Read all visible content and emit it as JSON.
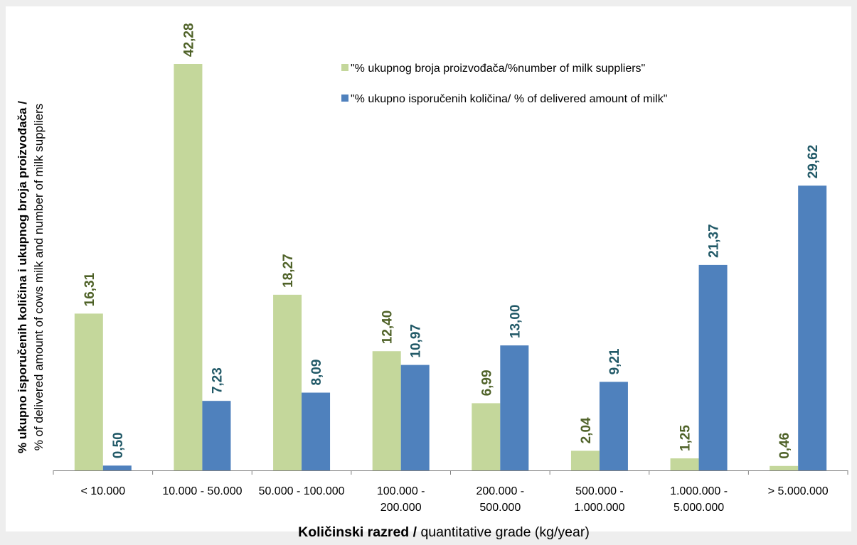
{
  "chart_data": {
    "type": "bar",
    "title": "",
    "categories": [
      [
        "< 10.000"
      ],
      [
        "10.000 - 50.000"
      ],
      [
        "50.000 - 100.000"
      ],
      [
        "100.000 -",
        "200.000"
      ],
      [
        "200.000 -",
        "500.000"
      ],
      [
        "500.000 -",
        "1.000.000"
      ],
      [
        "1.000.000 -",
        "5.000.000"
      ],
      [
        "> 5.000.000"
      ]
    ],
    "series": [
      {
        "name": "\"% ukupnog broja proizvođača/%number of milk suppliers\"",
        "color": "#c4d79b",
        "label_color": "#4f6228",
        "values": [
          16.31,
          42.28,
          18.27,
          12.4,
          6.99,
          2.04,
          1.25,
          0.46
        ],
        "labels": [
          "16,31",
          "42,28",
          "18,27",
          "12,40",
          "6,99",
          "2,04",
          "1,25",
          "0,46"
        ]
      },
      {
        "name": "\"% ukupno isporučenih količina/ % of delivered amount of milk\"",
        "color": "#4f81bd",
        "label_color": "#215967",
        "values": [
          0.5,
          7.23,
          8.09,
          10.97,
          13.0,
          9.21,
          21.37,
          29.62
        ],
        "labels": [
          "0,50",
          "7,23",
          "8,09",
          "10,97",
          "13,00",
          "9,21",
          "21,37",
          "29,62"
        ]
      }
    ],
    "ylim": [
      0,
      42.28
    ],
    "grid": false,
    "legend_position": "top-right",
    "xlabel": {
      "bold": "Količinski razred /",
      "normal": " quantitative grade (kg/year)"
    },
    "ylabel": {
      "line1": "% ukupno isporučenih količina i ukupnog broja proizvođača  /",
      "line2": "% of delivered amount of cows milk and number of milk suppliers"
    }
  }
}
